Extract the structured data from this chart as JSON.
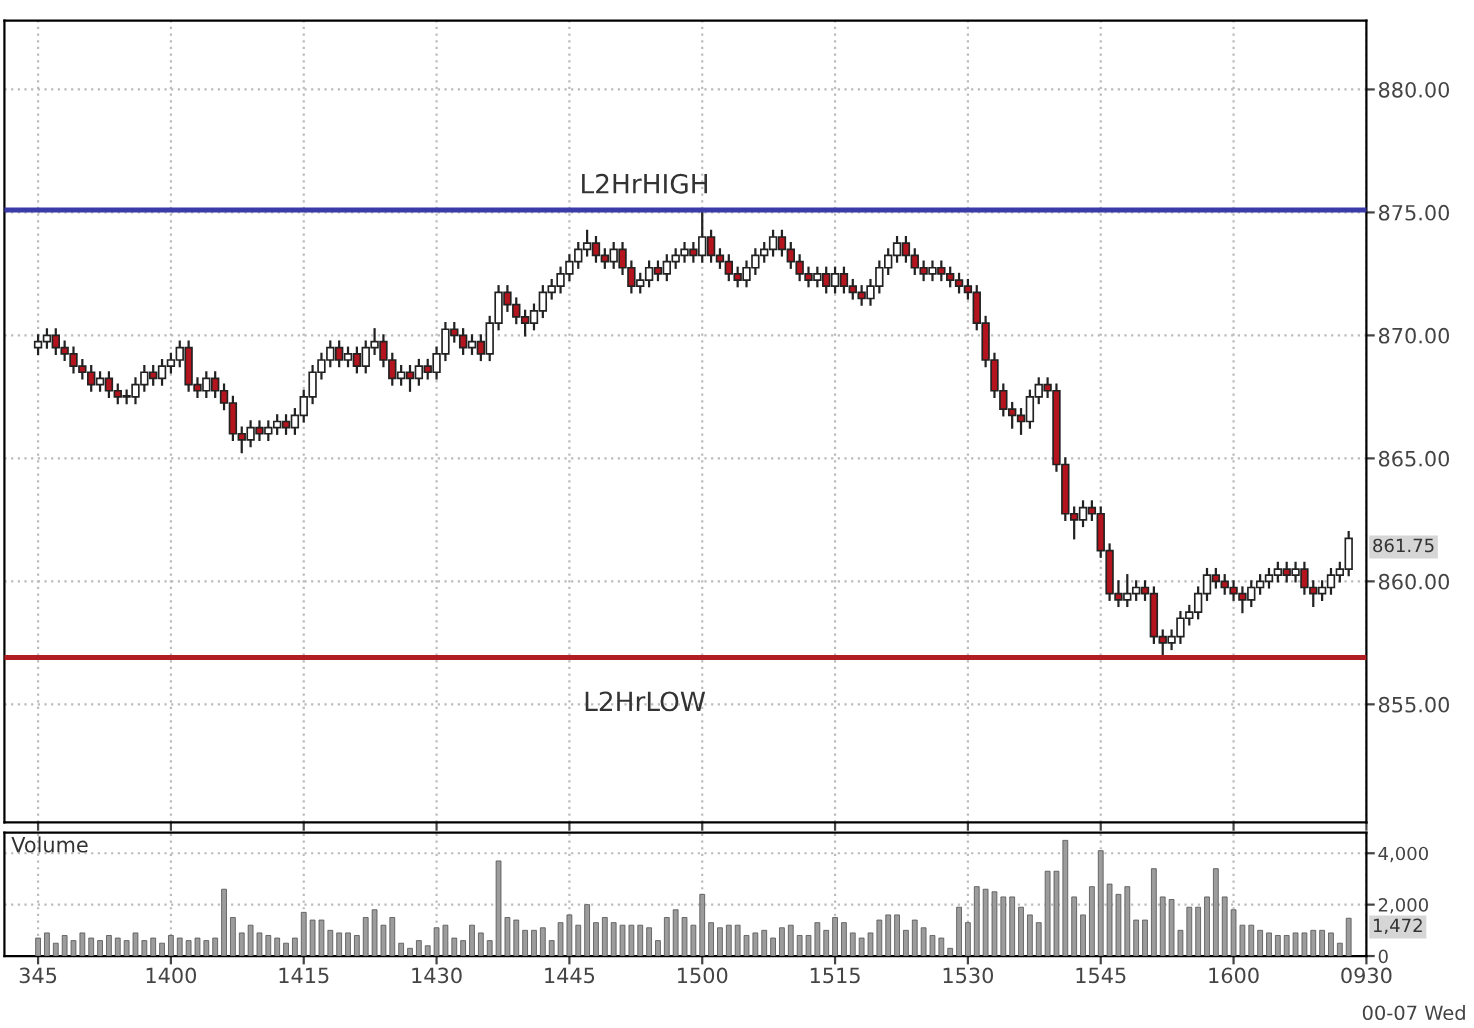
{
  "chart_data": [
    {
      "type": "candlestick",
      "tick_labels": "y",
      "grid": true,
      "categories": [
        "345",
        null,
        null,
        null,
        null,
        null,
        null,
        null,
        null,
        null,
        null,
        null,
        null,
        null,
        null,
        "1400",
        null,
        null,
        null,
        null,
        null,
        null,
        null,
        null,
        null,
        null,
        null,
        null,
        null,
        null,
        "1415",
        null,
        null,
        null,
        null,
        null,
        null,
        null,
        null,
        null,
        null,
        null,
        null,
        null,
        null,
        "1430",
        null,
        null,
        null,
        null,
        null,
        null,
        null,
        null,
        null,
        null,
        null,
        null,
        null,
        null,
        "1445",
        null,
        null,
        null,
        null,
        null,
        null,
        null,
        null,
        null,
        null,
        null,
        null,
        null,
        null,
        "1500",
        null,
        null,
        null,
        null,
        null,
        null,
        null,
        null,
        null,
        null,
        null,
        null,
        null,
        null,
        "1515",
        null,
        null,
        null,
        null,
        null,
        null,
        null,
        null,
        null,
        null,
        null,
        null,
        null,
        null,
        "1530",
        null,
        null,
        null,
        null,
        null,
        null,
        null,
        null,
        null,
        null,
        null,
        null,
        null,
        null,
        "1545",
        null,
        null,
        null,
        null,
        null,
        null,
        null,
        null,
        null,
        null,
        null,
        null,
        null,
        null,
        "1600",
        null,
        null,
        null,
        null,
        null,
        null,
        null,
        null,
        null,
        null,
        null,
        null,
        null,
        null,
        "0930"
      ],
      "ohlc": [
        [
          869.5,
          870.0,
          869.25,
          869.75
        ],
        [
          869.75,
          870.25,
          869.5,
          870.0
        ],
        [
          870.0,
          870.25,
          869.25,
          869.5
        ],
        [
          869.5,
          869.75,
          869.0,
          869.25
        ],
        [
          869.25,
          869.5,
          868.5,
          868.75
        ],
        [
          868.75,
          869.0,
          868.25,
          868.5
        ],
        [
          868.5,
          868.75,
          867.75,
          868.0
        ],
        [
          868.0,
          868.5,
          867.75,
          868.25
        ],
        [
          868.25,
          868.5,
          867.5,
          867.75
        ],
        [
          867.75,
          868.0,
          867.25,
          867.5
        ],
        [
          867.5,
          867.75,
          867.25,
          867.5
        ],
        [
          867.5,
          868.25,
          867.25,
          868.0
        ],
        [
          868.0,
          868.75,
          867.75,
          868.5
        ],
        [
          868.5,
          868.75,
          868.0,
          868.25
        ],
        [
          868.25,
          869.0,
          868.0,
          868.75
        ],
        [
          868.75,
          869.25,
          868.5,
          869.0
        ],
        [
          869.0,
          869.75,
          868.75,
          869.5
        ],
        [
          869.5,
          869.75,
          867.75,
          868.0
        ],
        [
          868.0,
          868.25,
          867.5,
          867.75
        ],
        [
          867.75,
          868.5,
          867.5,
          868.25
        ],
        [
          868.25,
          868.5,
          867.5,
          867.75
        ],
        [
          867.75,
          868.0,
          867.0,
          867.25
        ],
        [
          867.25,
          867.5,
          865.75,
          866.0
        ],
        [
          866.0,
          866.25,
          865.25,
          865.75
        ],
        [
          865.75,
          866.5,
          865.5,
          866.25
        ],
        [
          866.25,
          866.5,
          865.75,
          866.0
        ],
        [
          866.0,
          866.5,
          865.75,
          866.25
        ],
        [
          866.25,
          866.75,
          866.0,
          866.5
        ],
        [
          866.5,
          866.75,
          866.0,
          866.25
        ],
        [
          866.25,
          867.0,
          866.0,
          866.75
        ],
        [
          866.75,
          867.75,
          866.5,
          867.5
        ],
        [
          867.5,
          868.75,
          867.25,
          868.5
        ],
        [
          868.5,
          869.25,
          868.25,
          869.0
        ],
        [
          869.0,
          869.75,
          868.75,
          869.5
        ],
        [
          869.5,
          869.75,
          868.75,
          869.0
        ],
        [
          869.0,
          869.5,
          868.75,
          869.25
        ],
        [
          869.25,
          869.5,
          868.5,
          868.75
        ],
        [
          868.75,
          869.75,
          868.5,
          869.5
        ],
        [
          869.5,
          870.25,
          869.25,
          869.75
        ],
        [
          869.75,
          870.0,
          868.75,
          869.0
        ],
        [
          869.0,
          869.25,
          868.0,
          868.25
        ],
        [
          868.25,
          868.75,
          868.0,
          868.5
        ],
        [
          868.5,
          868.75,
          867.75,
          868.25
        ],
        [
          868.25,
          869.0,
          868.0,
          868.75
        ],
        [
          868.75,
          869.0,
          868.25,
          868.5
        ],
        [
          868.5,
          869.5,
          868.25,
          869.25
        ],
        [
          869.25,
          870.5,
          869.0,
          870.25
        ],
        [
          870.25,
          870.5,
          869.75,
          870.0
        ],
        [
          870.0,
          870.25,
          869.25,
          869.5
        ],
        [
          869.5,
          870.0,
          869.25,
          869.75
        ],
        [
          869.75,
          870.0,
          869.0,
          869.25
        ],
        [
          869.25,
          870.75,
          869.0,
          870.5
        ],
        [
          870.5,
          872.0,
          870.25,
          871.75
        ],
        [
          871.75,
          872.0,
          871.0,
          871.25
        ],
        [
          871.25,
          871.5,
          870.5,
          870.75
        ],
        [
          870.75,
          871.0,
          870.0,
          870.5
        ],
        [
          870.5,
          871.25,
          870.25,
          871.0
        ],
        [
          871.0,
          872.0,
          870.75,
          871.75
        ],
        [
          871.75,
          872.25,
          871.5,
          872.0
        ],
        [
          872.0,
          872.75,
          871.75,
          872.5
        ],
        [
          872.5,
          873.25,
          872.25,
          873.0
        ],
        [
          873.0,
          873.75,
          872.75,
          873.5
        ],
        [
          873.5,
          874.25,
          873.25,
          873.75
        ],
        [
          873.75,
          874.0,
          873.0,
          873.25
        ],
        [
          873.25,
          873.5,
          872.75,
          873.0
        ],
        [
          873.0,
          873.75,
          872.75,
          873.5
        ],
        [
          873.5,
          873.75,
          872.5,
          872.75
        ],
        [
          872.75,
          873.0,
          871.75,
          872.0
        ],
        [
          872.0,
          872.5,
          871.75,
          872.25
        ],
        [
          872.25,
          873.0,
          872.0,
          872.75
        ],
        [
          872.75,
          873.0,
          872.25,
          872.5
        ],
        [
          872.5,
          873.25,
          872.25,
          873.0
        ],
        [
          873.0,
          873.5,
          872.75,
          873.25
        ],
        [
          873.25,
          873.75,
          873.0,
          873.5
        ],
        [
          873.5,
          873.75,
          873.0,
          873.25
        ],
        [
          873.25,
          875.0,
          873.0,
          874.0
        ],
        [
          874.0,
          874.25,
          873.0,
          873.25
        ],
        [
          873.25,
          873.5,
          872.75,
          873.0
        ],
        [
          873.0,
          873.25,
          872.25,
          872.5
        ],
        [
          872.5,
          872.75,
          872.0,
          872.25
        ],
        [
          872.25,
          873.0,
          872.0,
          872.75
        ],
        [
          872.75,
          873.5,
          872.5,
          873.25
        ],
        [
          873.25,
          873.75,
          873.0,
          873.5
        ],
        [
          873.5,
          874.25,
          873.25,
          874.0
        ],
        [
          874.0,
          874.25,
          873.25,
          873.5
        ],
        [
          873.5,
          873.75,
          872.75,
          873.0
        ],
        [
          873.0,
          873.25,
          872.25,
          872.5
        ],
        [
          872.5,
          872.75,
          872.0,
          872.25
        ],
        [
          872.25,
          872.75,
          872.0,
          872.5
        ],
        [
          872.5,
          872.75,
          871.75,
          872.0
        ],
        [
          872.0,
          872.75,
          871.75,
          872.5
        ],
        [
          872.5,
          872.75,
          871.75,
          872.0
        ],
        [
          872.0,
          872.25,
          871.5,
          871.75
        ],
        [
          871.75,
          872.0,
          871.25,
          871.5
        ],
        [
          871.5,
          872.25,
          871.25,
          872.0
        ],
        [
          872.0,
          873.0,
          871.75,
          872.75
        ],
        [
          872.75,
          873.5,
          872.5,
          873.25
        ],
        [
          873.25,
          874.0,
          873.0,
          873.75
        ],
        [
          873.75,
          874.0,
          873.0,
          873.25
        ],
        [
          873.25,
          873.5,
          872.5,
          872.75
        ],
        [
          872.75,
          873.0,
          872.25,
          872.5
        ],
        [
          872.5,
          873.0,
          872.25,
          872.75
        ],
        [
          872.75,
          873.0,
          872.25,
          872.5
        ],
        [
          872.5,
          872.75,
          872.0,
          872.25
        ],
        [
          872.25,
          872.5,
          871.75,
          872.0
        ],
        [
          872.0,
          872.25,
          871.5,
          871.75
        ],
        [
          871.75,
          872.0,
          870.25,
          870.5
        ],
        [
          870.5,
          870.75,
          868.75,
          869.0
        ],
        [
          869.0,
          869.25,
          867.5,
          867.75
        ],
        [
          867.75,
          868.0,
          866.75,
          867.0
        ],
        [
          867.0,
          867.25,
          866.25,
          866.75
        ],
        [
          866.75,
          867.0,
          866.0,
          866.5
        ],
        [
          866.5,
          867.75,
          866.25,
          867.5
        ],
        [
          867.5,
          868.25,
          867.25,
          868.0
        ],
        [
          868.0,
          868.25,
          867.5,
          867.75
        ],
        [
          867.75,
          868.0,
          864.5,
          864.75
        ],
        [
          864.75,
          865.0,
          862.5,
          862.75
        ],
        [
          862.75,
          863.0,
          861.75,
          862.5
        ],
        [
          862.5,
          863.25,
          862.25,
          863.0
        ],
        [
          863.0,
          863.25,
          862.5,
          862.75
        ],
        [
          862.75,
          863.0,
          861.0,
          861.25
        ],
        [
          861.25,
          861.5,
          859.25,
          859.5
        ],
        [
          859.5,
          860.0,
          859.0,
          859.25
        ],
        [
          859.25,
          860.25,
          859.0,
          859.5
        ],
        [
          859.5,
          860.0,
          859.25,
          859.75
        ],
        [
          859.75,
          860.0,
          859.25,
          859.5
        ],
        [
          859.5,
          859.75,
          857.5,
          857.75
        ],
        [
          857.75,
          858.0,
          857.0,
          857.5
        ],
        [
          857.5,
          858.0,
          857.25,
          857.75
        ],
        [
          857.75,
          858.75,
          857.5,
          858.5
        ],
        [
          858.5,
          859.0,
          858.25,
          858.75
        ],
        [
          858.75,
          859.75,
          858.5,
          859.5
        ],
        [
          859.5,
          860.5,
          859.25,
          860.25
        ],
        [
          860.25,
          860.5,
          859.75,
          860.0
        ],
        [
          860.0,
          860.25,
          859.5,
          859.75
        ],
        [
          859.75,
          860.0,
          859.25,
          859.5
        ],
        [
          859.5,
          859.75,
          858.75,
          859.25
        ],
        [
          859.25,
          860.0,
          859.0,
          859.75
        ],
        [
          859.75,
          860.25,
          859.5,
          860.0
        ],
        [
          860.0,
          860.5,
          859.75,
          860.25
        ],
        [
          860.25,
          860.75,
          860.0,
          860.5
        ],
        [
          860.5,
          860.75,
          860.0,
          860.25
        ],
        [
          860.25,
          860.75,
          860.0,
          860.5
        ],
        [
          860.5,
          860.75,
          859.5,
          859.75
        ],
        [
          859.75,
          860.0,
          859.0,
          859.5
        ],
        [
          859.5,
          860.0,
          859.25,
          859.75
        ],
        [
          859.75,
          860.5,
          859.5,
          860.25
        ],
        [
          860.25,
          860.75,
          860.0,
          860.5
        ],
        [
          860.5,
          862.0,
          860.25,
          861.75
        ],
        null,
        null
      ],
      "ylim": [
        850.2,
        882.8
      ],
      "yticks": [
        {
          "value": 855,
          "label": "855.00"
        },
        {
          "value": 860,
          "label": "860.00"
        },
        {
          "value": 865,
          "label": "865.00"
        },
        {
          "value": 870,
          "label": "870.00"
        },
        {
          "value": 875,
          "label": "875.00"
        },
        {
          "value": 880,
          "label": "880.00"
        }
      ],
      "ref_lines": [
        {
          "axis": "y",
          "value": 875.1,
          "label": "L2HrHIGH",
          "color": "#3a3aa8"
        },
        {
          "axis": "y",
          "value": 856.9,
          "label": "L2HrLOW",
          "color": "#b01e23"
        }
      ],
      "annotations": [
        "861.75"
      ]
    },
    {
      "type": "bar",
      "title": "Volume",
      "grid": true,
      "color": "#9c9c9c",
      "categories": [
        "345",
        null,
        null,
        null,
        null,
        null,
        null,
        null,
        null,
        null,
        null,
        null,
        null,
        null,
        null,
        "1400",
        null,
        null,
        null,
        null,
        null,
        null,
        null,
        null,
        null,
        null,
        null,
        null,
        null,
        null,
        "1415",
        null,
        null,
        null,
        null,
        null,
        null,
        null,
        null,
        null,
        null,
        null,
        null,
        null,
        null,
        "1430",
        null,
        null,
        null,
        null,
        null,
        null,
        null,
        null,
        null,
        null,
        null,
        null,
        null,
        null,
        "1445",
        null,
        null,
        null,
        null,
        null,
        null,
        null,
        null,
        null,
        null,
        null,
        null,
        null,
        null,
        "1500",
        null,
        null,
        null,
        null,
        null,
        null,
        null,
        null,
        null,
        null,
        null,
        null,
        null,
        null,
        "1515",
        null,
        null,
        null,
        null,
        null,
        null,
        null,
        null,
        null,
        null,
        null,
        null,
        null,
        null,
        "1530",
        null,
        null,
        null,
        null,
        null,
        null,
        null,
        null,
        null,
        null,
        null,
        null,
        null,
        null,
        "1545",
        null,
        null,
        null,
        null,
        null,
        null,
        null,
        null,
        null,
        null,
        null,
        null,
        null,
        null,
        "1600",
        null,
        null,
        null,
        null,
        null,
        null,
        null,
        null,
        null,
        null,
        null,
        null,
        null,
        null,
        "0930"
      ],
      "values": [
        700,
        900,
        500,
        800,
        600,
        900,
        700,
        600,
        800,
        700,
        600,
        900,
        600,
        700,
        500,
        800,
        700,
        600,
        700,
        600,
        700,
        2600,
        1500,
        900,
        1200,
        900,
        800,
        700,
        500,
        700,
        1700,
        1400,
        1400,
        1000,
        900,
        900,
        800,
        1500,
        1800,
        1200,
        1500,
        500,
        300,
        600,
        400,
        1100,
        1200,
        700,
        600,
        1200,
        900,
        600,
        3700,
        1500,
        1400,
        1000,
        1000,
        1100,
        600,
        1300,
        1600,
        1200,
        2000,
        1300,
        1500,
        1300,
        1200,
        1200,
        1200,
        1100,
        600,
        1500,
        1800,
        1500,
        1200,
        2400,
        1300,
        1100,
        1200,
        1200,
        800,
        900,
        1000,
        700,
        1100,
        1200,
        800,
        800,
        1300,
        1000,
        1500,
        1300,
        900,
        700,
        900,
        1400,
        1600,
        1600,
        1000,
        1400,
        1100,
        800,
        700,
        300,
        1900,
        1300,
        2700,
        2600,
        2500,
        2300,
        2300,
        1900,
        1600,
        1300,
        3300,
        3300,
        4500,
        2300,
        1600,
        2700,
        4100,
        2800,
        2400,
        2700,
        1400,
        1400,
        3400,
        2300,
        2200,
        1000,
        1900,
        1900,
        2300,
        3400,
        2300,
        1800,
        1200,
        1200,
        1000,
        900,
        800,
        800,
        900,
        900,
        1000,
        1000,
        900,
        500,
        1472,
        null,
        null
      ],
      "ylim": [
        0,
        4800
      ],
      "yticks": [
        0,
        {
          "value": 2000,
          "label": "2,000"
        },
        {
          "value": 4000,
          "label": "4,000"
        }
      ],
      "annotations": [
        "1,472",
        "00-07 Wed"
      ]
    }
  ]
}
